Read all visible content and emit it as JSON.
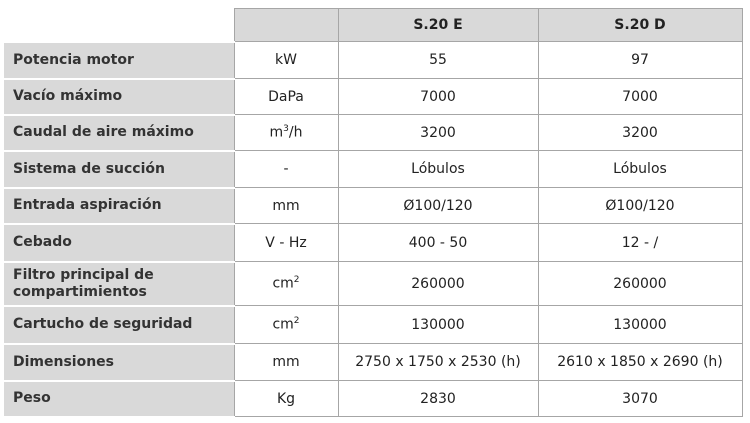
{
  "table": {
    "columns": [
      "",
      "",
      "S.20 E",
      "S.20 D"
    ],
    "rows": [
      {
        "label": "Potencia motor",
        "unit": "kW",
        "unit_sup": "",
        "e": "55",
        "d": "97"
      },
      {
        "label": "Vacío máximo",
        "unit": "DaPa",
        "unit_sup": "",
        "e": "7000",
        "d": "7000"
      },
      {
        "label": "Caudal de aire máximo",
        "unit": "m",
        "unit_sup": "3",
        "unit_suffix": "/h",
        "e": "3200",
        "d": "3200"
      },
      {
        "label": "Sistema de succión",
        "unit": "-",
        "unit_sup": "",
        "e": "Lóbulos",
        "d": "Lóbulos"
      },
      {
        "label": "Entrada aspiración",
        "unit": "mm",
        "unit_sup": "",
        "e": "Ø100/120",
        "d": "Ø100/120"
      },
      {
        "label": "Cebado",
        "unit": "V - Hz",
        "unit_sup": "",
        "e": "400 - 50",
        "d": "12 - /"
      },
      {
        "label": "Filtro principal de compartimientos",
        "unit": "cm",
        "unit_sup": "2",
        "e": "260000",
        "d": "260000"
      },
      {
        "label": "Cartucho de seguridad",
        "unit": "cm",
        "unit_sup": "2",
        "e": "130000",
        "d": "130000"
      },
      {
        "label": "Dimensiones",
        "unit": "mm",
        "unit_sup": "",
        "e": "2750 x 1750 x 2530 (h)",
        "d": "2610 x 1850 x 2690 (h)"
      },
      {
        "label": "Peso",
        "unit": "Kg",
        "unit_sup": "",
        "e": "2830",
        "d": "3070"
      }
    ]
  }
}
